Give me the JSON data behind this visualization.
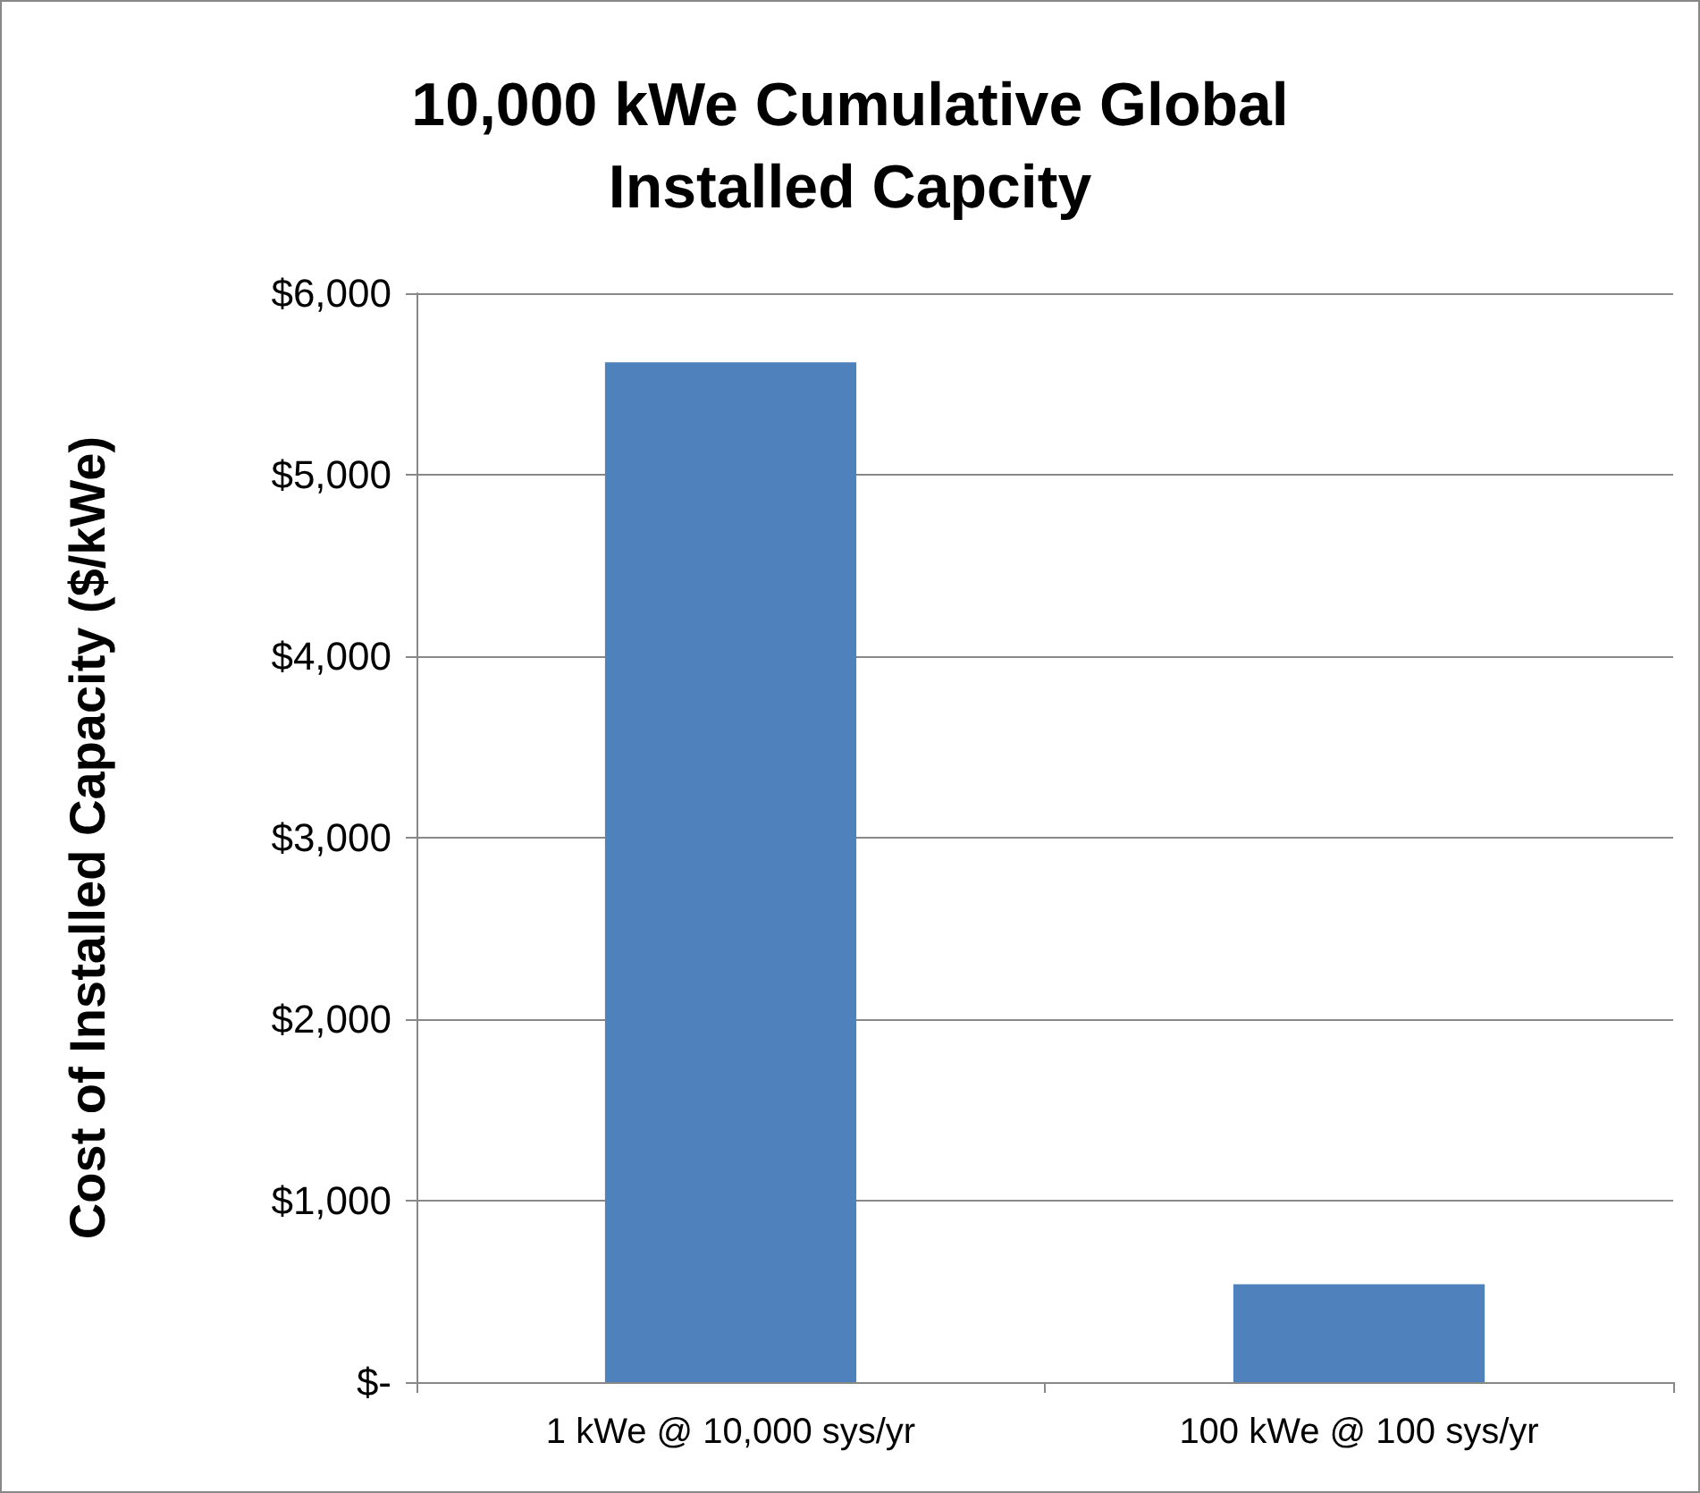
{
  "chart_data": {
    "type": "bar",
    "title": "10,000 kWe Cumulative Global\nInstalled Capcity",
    "ylabel": "Cost of Installed Capacity ($/kWe)",
    "categories": [
      "1 kWe @ 10,000 sys/yr",
      "100 kWe @ 100 sys/yr"
    ],
    "values": [
      5620,
      540
    ],
    "color": "#4f81bd",
    "ylim": [
      0,
      6000
    ],
    "yticks": [
      {
        "value": 0,
        "label": "$-"
      },
      {
        "value": 1000,
        "label": "$1,000"
      },
      {
        "value": 2000,
        "label": "$2,000"
      },
      {
        "value": 3000,
        "label": "$3,000"
      },
      {
        "value": 4000,
        "label": "$4,000"
      },
      {
        "value": 5000,
        "label": "$5,000"
      },
      {
        "value": 6000,
        "label": "$6,000"
      }
    ],
    "grid": "y"
  }
}
